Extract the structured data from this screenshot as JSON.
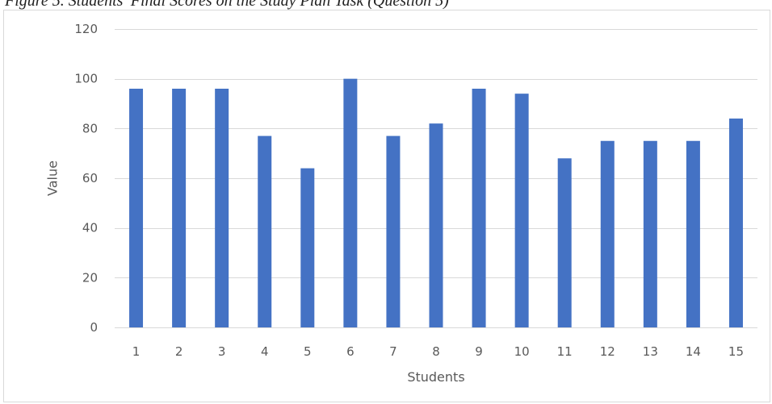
{
  "caption": "Figure 5. Students' Final Scores on the Study Plan Task (Question 5)",
  "colors": {
    "bar": "#4472C4",
    "gridline": "#d9d9d9",
    "axis_text": "#595959"
  },
  "chart_data": {
    "type": "bar",
    "title": "",
    "xlabel": "Students",
    "ylabel": "Value",
    "ylim": [
      0,
      120
    ],
    "yticks": [
      0,
      20,
      40,
      60,
      80,
      100,
      120
    ],
    "grid": true,
    "legend": "none",
    "categories": [
      "1",
      "2",
      "3",
      "4",
      "5",
      "6",
      "7",
      "8",
      "9",
      "10",
      "11",
      "12",
      "13",
      "14",
      "15"
    ],
    "values": [
      96,
      96,
      96,
      77,
      64,
      100,
      77,
      82,
      96,
      94,
      68,
      75,
      75,
      75,
      84
    ]
  }
}
